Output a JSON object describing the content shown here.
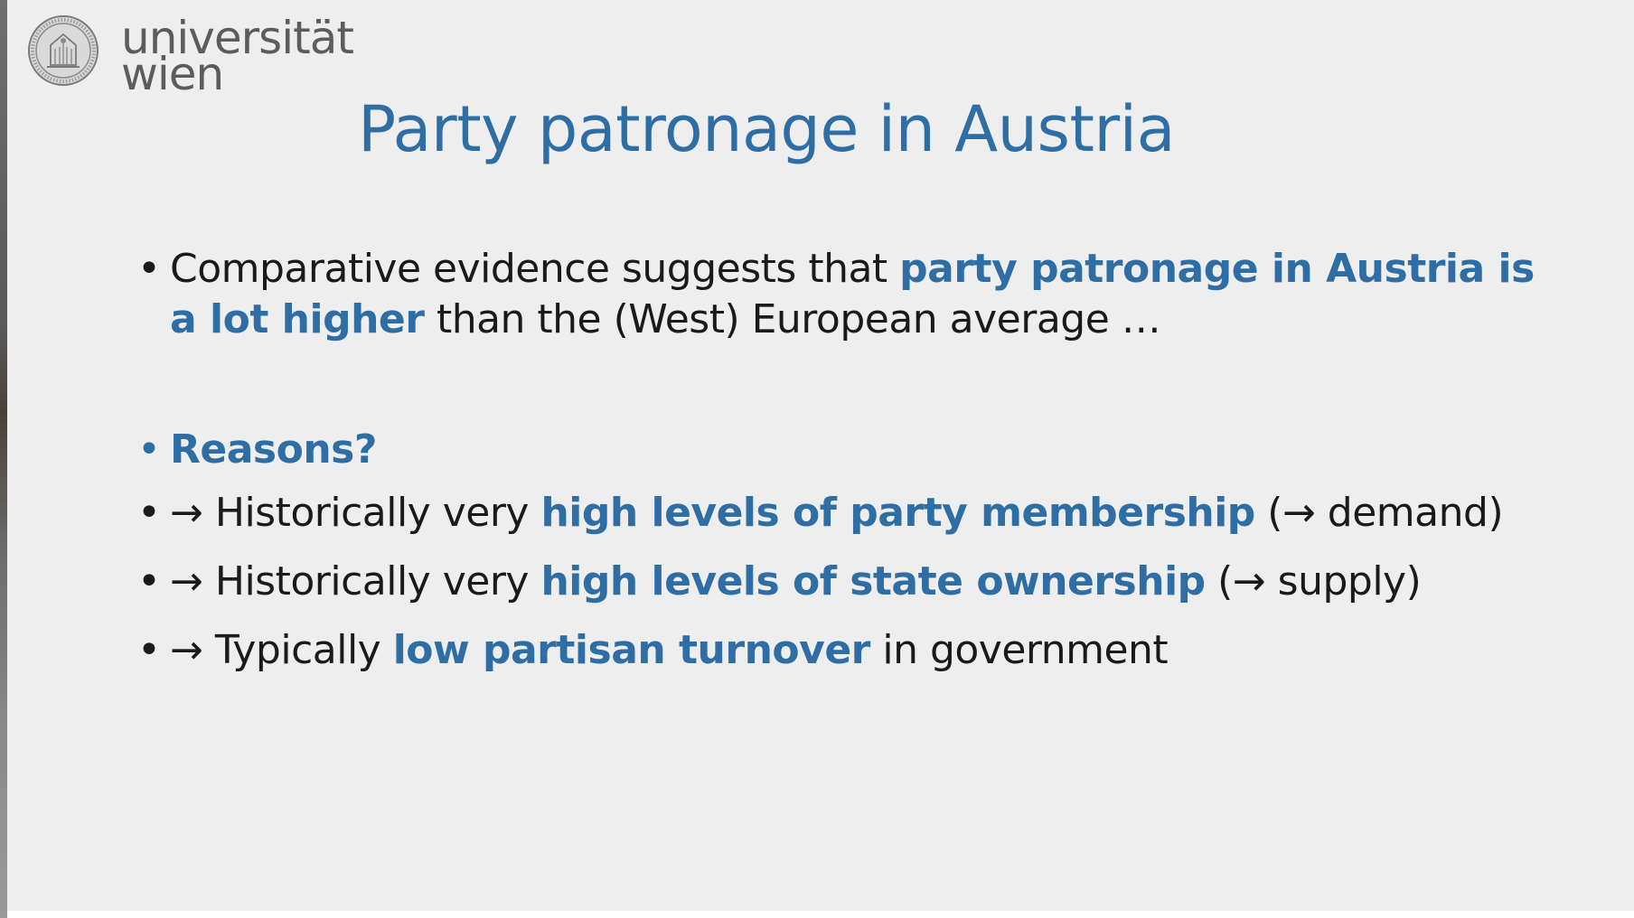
{
  "logo": {
    "line1": "universität",
    "line2": "wien"
  },
  "title": "Party patronage in Austria",
  "bullets": [
    {
      "pre": "Comparative evidence suggests that ",
      "highlight": "party patronage in Austria is a lot higher",
      "post": " than the (West) European average …"
    },
    {
      "highlight": "Reasons?"
    },
    {
      "arrow": "→",
      "pre": " Historically very ",
      "highlight": "high levels of party membership",
      "post": " (→ demand)"
    },
    {
      "arrow": "→",
      "pre": " Historically very ",
      "highlight": "high levels of state ownership",
      "post": " (→ supply)"
    },
    {
      "arrow": "→",
      "pre": " Typically ",
      "highlight": "low partisan turnover",
      "post": " in government"
    }
  ],
  "colors": {
    "accent": "#2e6ea4",
    "text": "#1a1a1a",
    "background": "#eeeeee",
    "logo": "#5c5c5c"
  },
  "icons": {
    "logo": "university-seal-icon",
    "bullet": "bullet-dot-icon",
    "arrow": "right-arrow-icon"
  }
}
